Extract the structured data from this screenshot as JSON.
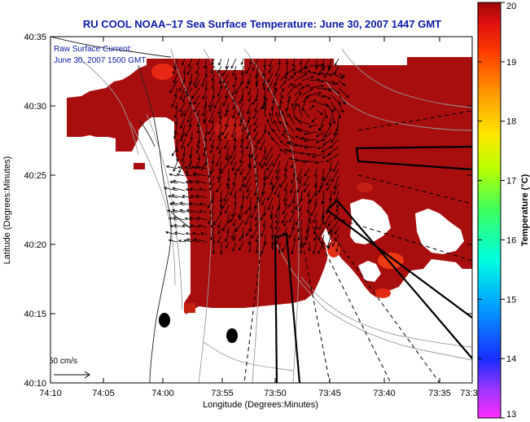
{
  "title": "RU COOL  NOAA–17  Sea Surface Temperature:  June 30, 2007 1447 GMT",
  "current_note": {
    "line1": "Raw Surface Current:",
    "line2": "June 30, 2007 1500 GMT"
  },
  "axes": {
    "xlabel": "Longitude (Degrees:Minutes)",
    "ylabel": "Latitude (Degrees:Minutes)",
    "xticks": [
      "74:10",
      "74:05",
      "74:00",
      "73:55",
      "73:50",
      "73:45",
      "73:40",
      "73:35",
      "73:3"
    ],
    "yticks": [
      "40:35",
      "40:30",
      "40:25",
      "40:20",
      "40:15",
      "40:10"
    ]
  },
  "scale_bar": {
    "label": "50 cm/s"
  },
  "colorbar": {
    "label": "Temperature (°C)",
    "ticks": [
      "20",
      "19",
      "18",
      "17",
      "16",
      "15",
      "14",
      "13"
    ],
    "min": 13,
    "max": 20,
    "colors": [
      "#ff2cff",
      "#9a36ff",
      "#1a2cff",
      "#00a8ff",
      "#00ffe0",
      "#3cff60",
      "#b8ff00",
      "#ffe800",
      "#ff9a00",
      "#ff3c00",
      "#e01010",
      "#a00808"
    ]
  },
  "colors": {
    "sst": "#a80e0e",
    "sst_warm": "#c82010",
    "land_bg": "#ffffff",
    "title": "#0a1aa8"
  }
}
